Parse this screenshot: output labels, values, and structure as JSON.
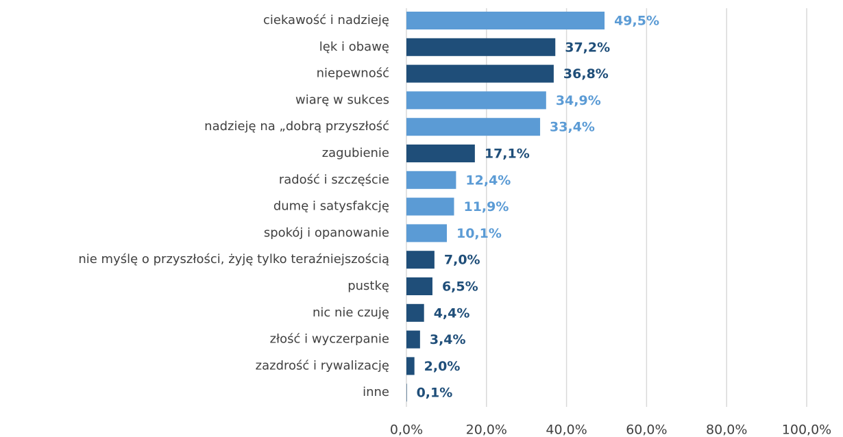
{
  "chart_data": {
    "type": "bar",
    "orientation": "horizontal",
    "categories": [
      "ciekawość i nadzieję",
      "lęk i obawę",
      "niepewność",
      "wiarę w sukces",
      "nadzieję na „dobrą przyszłość",
      "zagubienie",
      "radość i szczęście",
      "dumę i satysfakcję",
      "spokój i opanowanie",
      "nie myślę o przyszłości, żyję tylko teraźniejszością",
      "pustkę",
      "nic nie czuję",
      "złość i wyczerpanie",
      "zazdrość i rywalizację",
      "inne"
    ],
    "values": [
      49.5,
      37.2,
      36.8,
      34.9,
      33.4,
      17.1,
      12.4,
      11.9,
      10.1,
      7.0,
      6.5,
      4.4,
      3.4,
      2.0,
      0.1
    ],
    "value_labels": [
      "49,5%",
      "37,2%",
      "36,8%",
      "34,9%",
      "33,4%",
      "17,1%",
      "12,4%",
      "11,9%",
      "10,1%",
      "7,0%",
      "6,5%",
      "4,4%",
      "3,4%",
      "2,0%",
      "0,1%"
    ],
    "colors": [
      "#5b9bd5",
      "#1f4e79",
      "#1f4e79",
      "#5b9bd5",
      "#5b9bd5",
      "#1f4e79",
      "#5b9bd5",
      "#5b9bd5",
      "#5b9bd5",
      "#1f4e79",
      "#1f4e79",
      "#1f4e79",
      "#1f4e79",
      "#1f4e79",
      "#1f4e79"
    ],
    "xlim": [
      0,
      100
    ],
    "xticks": [
      {
        "value": 0,
        "label": "0,0%"
      },
      {
        "value": 20,
        "label": "20,0%"
      },
      {
        "value": 40,
        "label": "40,0%"
      },
      {
        "value": 60,
        "label": "60,0%"
      },
      {
        "value": 80,
        "label": "80,0%"
      },
      {
        "value": 100,
        "label": "100,0%"
      }
    ],
    "grid": true
  }
}
